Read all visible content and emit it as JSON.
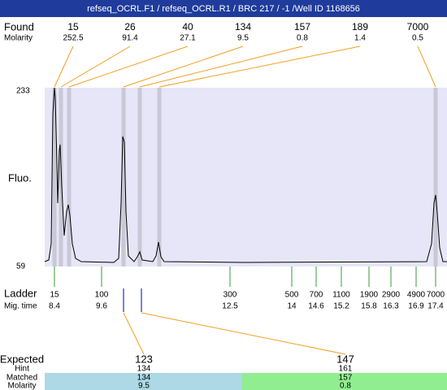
{
  "header": {
    "title": "refseq_OCRL.F1 / refseq_OCRL.R1 / BRC 217 / -1 /Well ID 1168656"
  },
  "found": {
    "label": "Found",
    "molarity_label": "Molarity",
    "peaks": [
      {
        "size": 15,
        "molarity": 252.5
      },
      {
        "size": 26,
        "molarity": 91.4
      },
      {
        "size": 40,
        "molarity": 27.1
      },
      {
        "size": 134,
        "molarity": 9.5
      },
      {
        "size": 157,
        "molarity": 0.8
      },
      {
        "size": 189,
        "molarity": 1.4
      },
      {
        "size": 7000,
        "molarity": 0.5
      }
    ]
  },
  "y_axis": {
    "label": "Fluo.",
    "max": 233,
    "min": 59
  },
  "ladder": {
    "label": "Ladder",
    "mig_label": "Mig. time",
    "items": [
      {
        "size": 15,
        "time": 8.4
      },
      {
        "size": 100,
        "time": 9.6
      },
      {
        "size": 300,
        "time": 12.5
      },
      {
        "size": 500,
        "time": 14
      },
      {
        "size": 700,
        "time": 14.6
      },
      {
        "size": 1100,
        "time": 15.2
      },
      {
        "size": 1900,
        "time": 15.8
      },
      {
        "size": 2900,
        "time": 16.3
      },
      {
        "size": 4900,
        "time": 16.9
      },
      {
        "size": 7000,
        "time": 17.4
      }
    ]
  },
  "expected": {
    "label": "Expected",
    "hint_label": "Hint",
    "matched_label": "Matched",
    "molarity_label": "Molarity",
    "items": [
      {
        "expected": 123,
        "hint": 134,
        "matched": 134,
        "molarity": 9.5
      },
      {
        "expected": 147,
        "hint": 161,
        "matched": 157,
        "molarity": 0.8
      }
    ]
  }
}
